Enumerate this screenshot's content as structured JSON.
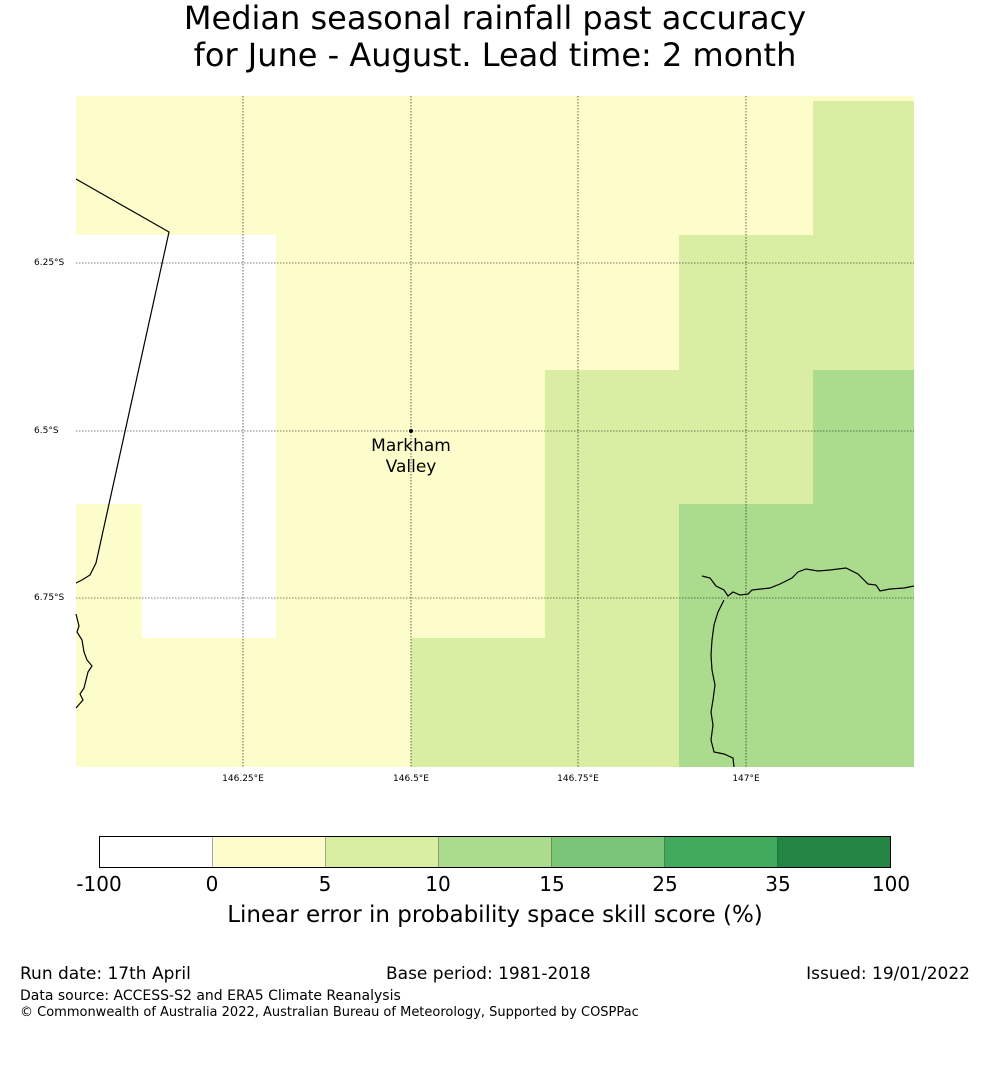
{
  "title": {
    "line1": "Median seasonal rainfall past accuracy",
    "line2": "for June - August. Lead time: 2 month"
  },
  "map": {
    "lat_labels": [
      "6.25°S",
      "6.5°S",
      "6.75°S"
    ],
    "lon_labels": [
      "146.25°E",
      "146.5°E",
      "146.75°E",
      "147°E"
    ],
    "place": {
      "name_line1": "Markham",
      "name_line2": "Valley"
    },
    "colors": {
      "white": "#ffffff",
      "c0_5": "#fdfdcb",
      "c5_10": "#d9eea3",
      "c10_15": "#abdc8d"
    }
  },
  "colorbar": {
    "bins": [
      {
        "color": "#ffffff"
      },
      {
        "color": "#fdfdcb"
      },
      {
        "color": "#d9eea3"
      },
      {
        "color": "#abdc8d"
      },
      {
        "color": "#79c679"
      },
      {
        "color": "#40ab5c"
      },
      {
        "color": "#238543"
      }
    ],
    "ticks": [
      "-100",
      "0",
      "5",
      "10",
      "15",
      "25",
      "35",
      "100"
    ],
    "label": "Linear error in probability space skill score (%)"
  },
  "footer": {
    "run_date": "Run date: 17th April",
    "base_period": "Base period: 1981-2018",
    "issued": "Issued: 19/01/2022",
    "data_source": "Data source: ACCESS-S2 and ERA5 Climate Reanalysis",
    "copyright": "© Commonwealth of Australia 2022, Australian Bureau of Meteorology, Supported by COSPPac"
  }
}
